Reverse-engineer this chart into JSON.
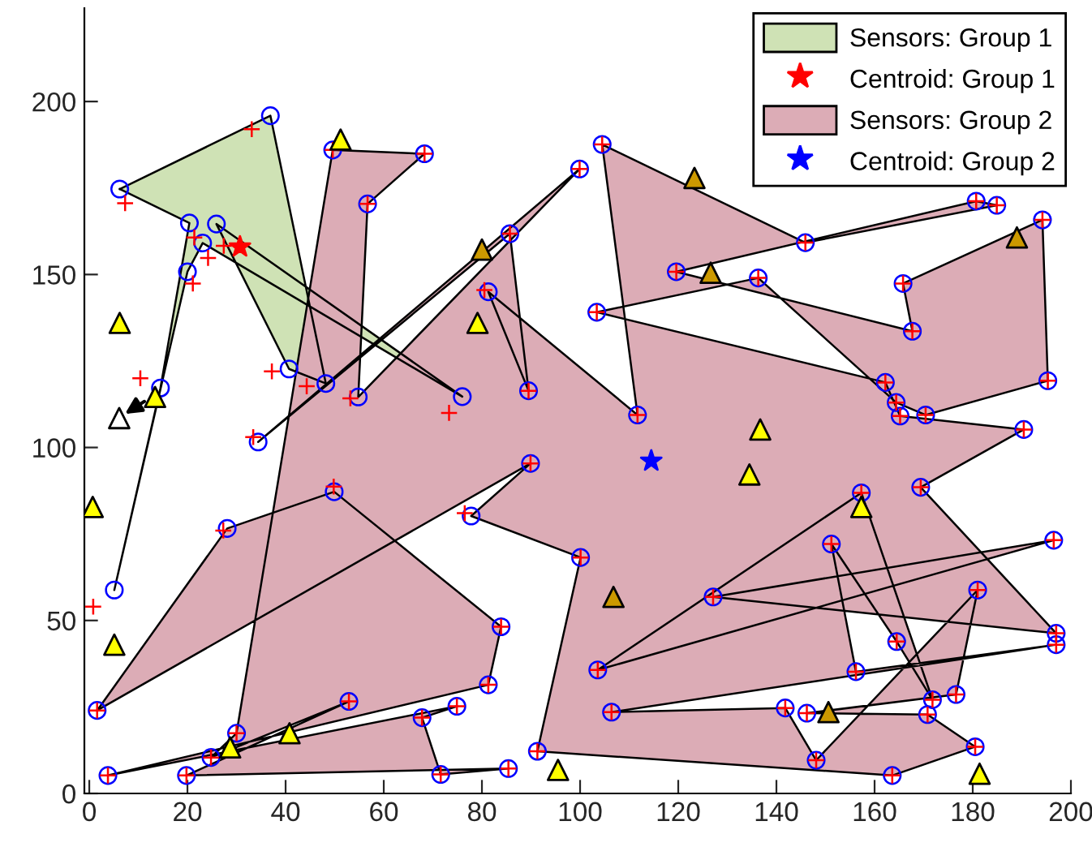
{
  "chart_data": {
    "type": "scatter",
    "xlim": [
      -1,
      200
    ],
    "ylim": [
      0,
      227
    ],
    "xticks": [
      0,
      20,
      40,
      60,
      80,
      100,
      120,
      140,
      160,
      180,
      200
    ],
    "yticks": [
      0,
      50,
      100,
      150,
      200
    ],
    "grid": false,
    "legend": "top right",
    "series": [
      {
        "name": "Sensors: Group 1",
        "type": "area",
        "color": "#cfe2b5",
        "x": [
          6.2,
          36.9,
          48.2,
          40.7,
          25.9,
          76,
          23.1,
          20,
          5.1,
          14.5,
          20.4
        ],
        "values": [
          174.7,
          195.9,
          118.5,
          122.7,
          164.6,
          114.7,
          159.1,
          150.8,
          58.8,
          117.2,
          164.9
        ]
      },
      {
        "name": "Centroid: Group 1",
        "marker": "star",
        "color": "#ff0000",
        "x": [
          30.7
        ],
        "values": [
          158
        ]
      },
      {
        "name": "Sensors: Group 2",
        "type": "area",
        "color": "#dcacb6",
        "x": [
          49.6,
          68.3,
          56.7,
          54.8,
          99.9,
          34.4,
          85.7,
          89.5,
          81.3,
          111.7,
          104.5,
          145.9,
          184.9,
          180.7,
          119.6,
          167.7,
          165.8,
          194.2,
          195.3,
          170.4,
          164.4,
          136.3,
          103.4,
          162.2,
          165.2,
          190.4,
          169.4,
          197,
          127.1,
          196.5,
          103.6,
          157.3,
          171.8,
          164.5,
          151.2,
          156.2,
          197,
          106.4,
          141.8,
          148.1,
          181,
          176.6,
          146.2,
          170.8,
          180.5,
          163.6,
          91.3,
          100.1,
          77.8,
          89.9,
          1.6,
          28.1,
          49.9,
          83.9,
          81.3,
          3.8,
          74.9,
          67.8,
          71.6,
          85.4,
          19.8,
          52.9,
          24.8,
          30
        ],
        "values": [
          186,
          184.9,
          170.4,
          114.6,
          180.5,
          101.6,
          161.8,
          116.4,
          145,
          109.4,
          187.6,
          159.2,
          170,
          171.2,
          150.8,
          133.6,
          147.4,
          165.8,
          119.3,
          109.4,
          113,
          149,
          139.1,
          118.8,
          109.1,
          105.2,
          88.5,
          46.3,
          56.8,
          73.2,
          35.7,
          86.9,
          27.1,
          43.9,
          72.1,
          35.2,
          43,
          23.5,
          24.7,
          9.6,
          58.8,
          28.6,
          23.2,
          22.8,
          13.5,
          5.2,
          12.2,
          68.2,
          80.2,
          95.4,
          24,
          76.6,
          87.2,
          48.2,
          31.4,
          5.2,
          25.2,
          21.9,
          5.5,
          7.2,
          5.2,
          26.6,
          10.4,
          17.4
        ]
      },
      {
        "name": "Centroid: Group 2",
        "marker": "star",
        "color": "#0000ff",
        "x": [
          114.5
        ],
        "values": [
          96.1
        ]
      },
      {
        "marker": "circle",
        "color": "#0000ff",
        "x": [
          6.2,
          36.9,
          48.2,
          40.7,
          25.9,
          76,
          23.1,
          20,
          5.1,
          14.5,
          20.4,
          49.6,
          68.3,
          56.7,
          54.8,
          99.9,
          34.4,
          85.7,
          89.5,
          81.3,
          111.7,
          104.5,
          145.9,
          184.9,
          180.7,
          119.6,
          167.7,
          165.8,
          194.2,
          195.3,
          170.4,
          164.4,
          136.3,
          103.4,
          162.2,
          165.2,
          190.4,
          169.4,
          197,
          127.1,
          196.5,
          103.6,
          157.3,
          171.8,
          164.5,
          151.2,
          156.2,
          197,
          106.4,
          141.8,
          148.1,
          181,
          176.6,
          146.2,
          170.8,
          180.5,
          163.6,
          91.3,
          100.1,
          77.8,
          89.9,
          1.6,
          28.1,
          49.9,
          83.9,
          81.3,
          3.8,
          74.9,
          67.8,
          71.6,
          85.4,
          19.8,
          52.9,
          24.8,
          30
        ],
        "values": [
          174.7,
          195.9,
          118.5,
          122.7,
          164.6,
          114.7,
          159.1,
          150.8,
          58.8,
          117.2,
          164.9,
          186,
          184.9,
          170.4,
          114.6,
          180.5,
          101.6,
          161.8,
          116.4,
          145,
          109.4,
          187.6,
          159.2,
          170,
          171.2,
          150.8,
          133.6,
          147.4,
          165.8,
          119.3,
          109.4,
          113,
          149,
          139.1,
          118.8,
          109.1,
          105.2,
          88.5,
          46.3,
          56.8,
          73.2,
          35.7,
          86.9,
          27.1,
          43.9,
          72.1,
          35.2,
          43,
          23.5,
          24.7,
          9.6,
          58.8,
          28.6,
          23.2,
          22.8,
          13.5,
          5.2,
          12.2,
          68.2,
          80.2,
          95.4,
          24,
          76.6,
          87.2,
          48.2,
          31.4,
          5.2,
          25.2,
          21.9,
          5.5,
          7.2,
          5.2,
          26.6,
          10.4,
          17.4
        ]
      },
      {
        "marker": "cross",
        "color": "#ff0000",
        "x": [
          7.3,
          33.1,
          21.4,
          24.2,
          27.4,
          21.1,
          37.2,
          44.3,
          10.4,
          0.8,
          33.4,
          73.3,
          49.8,
          27.3,
          49.6,
          68.3,
          56.7,
          53.2,
          99.9,
          85.7,
          89.5,
          80.5,
          111.7,
          104.5,
          145.9,
          184.9,
          180.7,
          119.6,
          167.7,
          165.8,
          194.2,
          195.3,
          170.4,
          164.4,
          136.3,
          103.4,
          162.2,
          165.2,
          190.4,
          169.4,
          197,
          127.1,
          196.5,
          103.6,
          157.3,
          171.8,
          164.5,
          151.2,
          156.2,
          197,
          106.4,
          141.8,
          148.1,
          181,
          176.6,
          146.2,
          170.8,
          180.5,
          163.6,
          91.3,
          100.1,
          76.5,
          89.9,
          1.6,
          83.9,
          81.3,
          3.8,
          74.9,
          67.8,
          71.6,
          85.4,
          19.8,
          52.9,
          24.8,
          30
        ],
        "values": [
          170.6,
          192,
          160.7,
          154.8,
          158.3,
          147.4,
          122,
          117.7,
          120,
          54,
          103,
          110,
          88.7,
          76,
          186,
          184.9,
          170.4,
          114.2,
          180.5,
          161.8,
          116.4,
          145.5,
          109.4,
          187.6,
          159.2,
          170,
          171.2,
          150.8,
          133.6,
          147.4,
          165.8,
          119.3,
          109.4,
          113,
          149,
          139.1,
          118.8,
          109.1,
          105.2,
          88.5,
          46.3,
          56.8,
          73.2,
          35.7,
          86.9,
          27.1,
          43.9,
          72.1,
          35.2,
          43,
          23.5,
          24.7,
          9.6,
          58.8,
          28.6,
          23.2,
          22.8,
          13.5,
          5.2,
          12.2,
          68.2,
          81,
          95.4,
          24,
          48.2,
          31.4,
          5.2,
          25.2,
          21.9,
          5.5,
          7.2,
          5.2,
          26.6,
          10.4,
          17.4
        ]
      },
      {
        "marker": "triangle",
        "color": "#ffff00",
        "x": [
          51.2,
          79.1,
          6.2,
          13.4,
          0.7,
          5.1,
          28.7,
          40.8,
          95.5,
          136.7,
          134.5,
          157.3,
          181.4
        ],
        "values": [
          189,
          136,
          136,
          114.6,
          82.8,
          43,
          13.3,
          17.4,
          6.8,
          105.2,
          92.2,
          82.8,
          5.7
        ]
      },
      {
        "marker": "triangle",
        "color": "#cc9900",
        "x": [
          80,
          123.3,
          126.6,
          189,
          106.8,
          150.6
        ],
        "values": [
          157.2,
          177.9,
          150.5,
          160.7,
          56.8,
          23.5
        ]
      },
      {
        "marker": "triangle",
        "color": "#ffffff",
        "x": [
          6.1
        ],
        "values": [
          108.5
        ]
      }
    ]
  }
}
